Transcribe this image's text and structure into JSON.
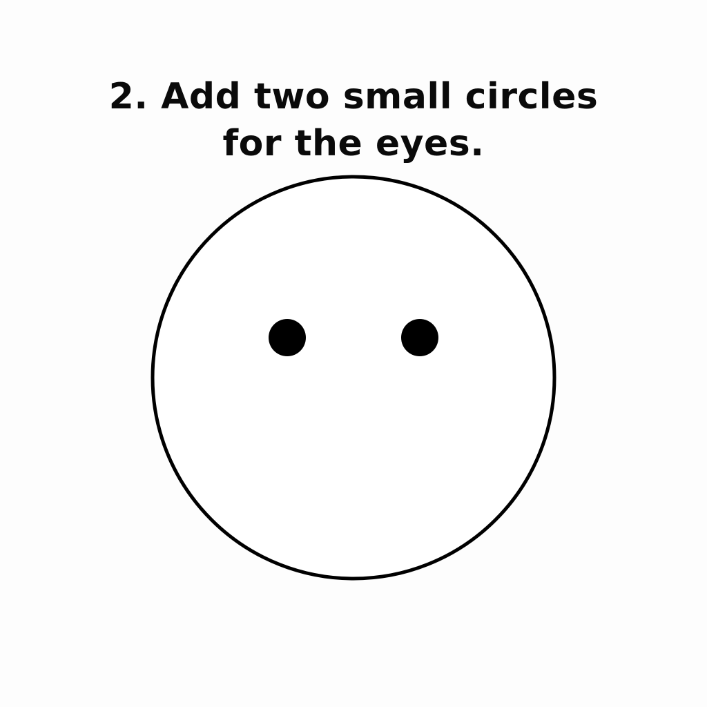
{
  "instruction": {
    "line1": "2. Add two small circles",
    "line2": "for the eyes."
  },
  "colors": {
    "background": "#fdfdfd",
    "ink": "#000000",
    "face_fill": "#ffffff"
  }
}
